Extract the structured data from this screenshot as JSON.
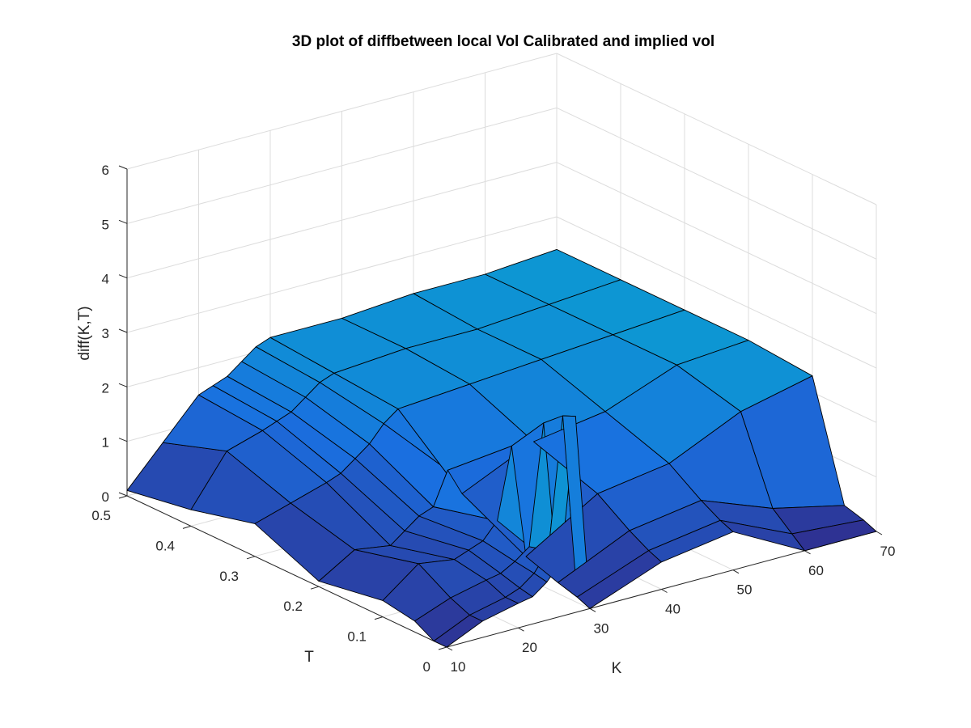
{
  "figure": {
    "title": "3D plot of diffbetween local Vol Calibrated and implied vol",
    "background": "#ffffff"
  },
  "chart_data": {
    "type": "surface",
    "title": "3D plot of diffbetween local Vol Calibrated and implied vol",
    "xlabel": "K",
    "ylabel": "T",
    "zlabel": "diff(K,T)",
    "xlim": [
      10,
      70
    ],
    "ylim": [
      0,
      0.5
    ],
    "zlim": [
      0,
      6
    ],
    "x_ticks": [
      "10",
      "20",
      "30",
      "40",
      "50",
      "60",
      "70"
    ],
    "y_ticks": [
      "0",
      "0.1",
      "0.2",
      "0.3",
      "0.4",
      "0.5"
    ],
    "z_ticks": [
      "0",
      "1",
      "2",
      "3",
      "4",
      "5",
      "6"
    ],
    "grid": true,
    "colormap": "parula",
    "colors": {
      "low": "#2f2f8f",
      "mid": "#1a6fe0",
      "high": "#0aa0d0",
      "edge": "#000000"
    },
    "K": [
      10,
      15,
      20,
      22,
      24,
      26,
      28,
      30,
      40,
      50,
      60,
      70
    ],
    "T": [
      0,
      0.02,
      0.05,
      0.1,
      0.2,
      0.3,
      0.4,
      0.5
    ],
    "Z": [
      [
        0.0,
        0.3,
        0.45,
        0.5,
        0.7,
        1.0,
        3.6,
        0.0,
        0.5,
        0.7,
        0.0,
        0.0
      ],
      [
        0.0,
        0.3,
        0.45,
        0.55,
        0.75,
        1.1,
        3.5,
        0.1,
        0.6,
        0.8,
        0.2,
        0.1
      ],
      [
        0.2,
        0.45,
        0.6,
        0.65,
        0.8,
        1.0,
        3.2,
        0.2,
        0.8,
        1.0,
        0.5,
        0.2
      ],
      [
        0.3,
        0.8,
        0.7,
        0.8,
        0.9,
        1.2,
        2.5,
        0.4,
        1.2,
        1.4,
        2.0,
        2.3
      ],
      [
        0.1,
        0.5,
        0.4,
        0.6,
        0.8,
        0.9,
        1.5,
        1.0,
        1.6,
        1.8,
        2.3,
        2.4
      ],
      [
        0.6,
        0.8,
        1.0,
        1.1,
        1.3,
        1.5,
        1.8,
        2.0,
        2.1,
        2.2,
        2.3,
        2.4
      ],
      [
        0.3,
        1.2,
        1.4,
        1.5,
        1.6,
        1.8,
        2.0,
        2.1,
        2.2,
        2.2,
        2.3,
        2.4
      ],
      [
        0.1,
        0.8,
        1.5,
        1.6,
        1.7,
        1.9,
        2.1,
        2.2,
        2.2,
        2.3,
        2.3,
        2.4
      ]
    ]
  }
}
